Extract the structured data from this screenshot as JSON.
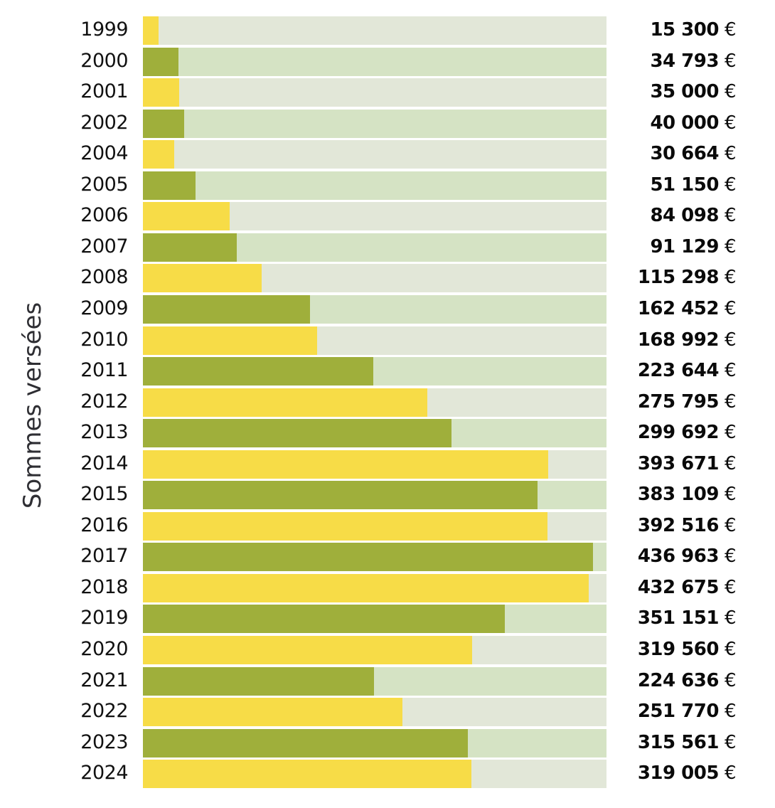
{
  "chart_data": {
    "type": "bar",
    "orientation": "horizontal",
    "title": "",
    "xlabel": "",
    "ylabel": "Sommes versées",
    "xlim": [
      0,
      450000
    ],
    "grid": false,
    "legend": "none",
    "currency_symbol": "€",
    "categories": [
      "1999",
      "2000",
      "2001",
      "2002",
      "2004",
      "2005",
      "2006",
      "2007",
      "2008",
      "2009",
      "2010",
      "2011",
      "2012",
      "2013",
      "2014",
      "2015",
      "2016",
      "2017",
      "2018",
      "2019",
      "2020",
      "2021",
      "2022",
      "2023",
      "2024"
    ],
    "values": [
      15300,
      34793,
      35000,
      40000,
      30664,
      51150,
      84098,
      91129,
      115298,
      162452,
      168992,
      223644,
      275795,
      299692,
      393671,
      383109,
      392516,
      436963,
      432675,
      351151,
      319560,
      224636,
      251770,
      315561,
      319005
    ],
    "value_labels": [
      "15 300",
      "34 793",
      "35 000",
      "40 000",
      "30 664",
      "51 150",
      "84 098",
      "91 129",
      "115 298",
      "162 452",
      "168 992",
      "223 644",
      "275 795",
      "299 692",
      "393 671",
      "383 109",
      "392 516",
      "436 963",
      "432 675",
      "351 151",
      "319 560",
      "224 636",
      "251 770",
      "315 561",
      "319 005"
    ],
    "colors": {
      "bar_odd": "#f7dc47",
      "bar_even": "#9faf3b",
      "track_odd": "#e2e7d8",
      "track_even": "#d5e3c4"
    }
  }
}
